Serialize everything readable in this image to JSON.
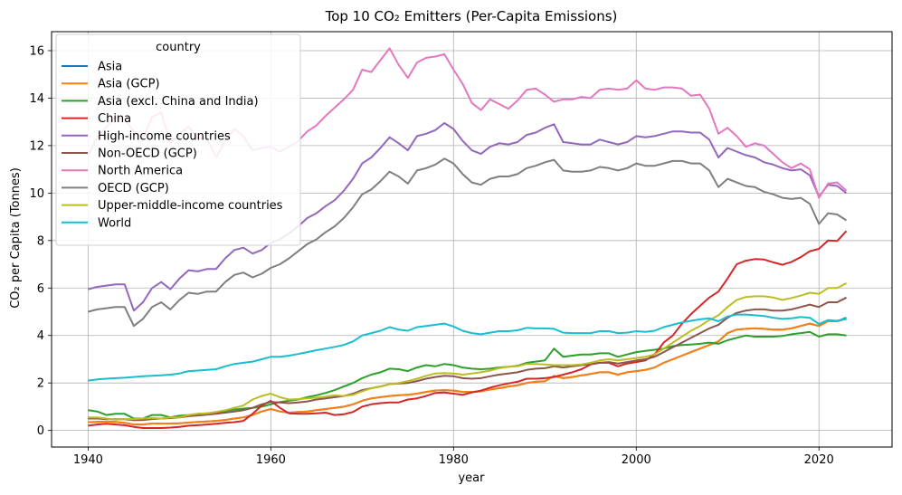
{
  "chart_data": {
    "type": "line",
    "title": "Top 10 CO₂ Emitters (Per-Capita Emissions)",
    "xlabel": "year",
    "ylabel": "CO₂ per Capita (Tonnes)",
    "xlim": [
      1936,
      2028
    ],
    "ylim": [
      -0.7,
      16.8
    ],
    "xticks": [
      1940,
      1960,
      1980,
      2000,
      2020
    ],
    "yticks": [
      0,
      2,
      4,
      6,
      8,
      10,
      12,
      14,
      16
    ],
    "grid": true,
    "legend": {
      "title": "country",
      "placement": "upper-left"
    },
    "x": [
      1940,
      1941,
      1942,
      1943,
      1944,
      1945,
      1946,
      1947,
      1948,
      1949,
      1950,
      1951,
      1952,
      1953,
      1954,
      1955,
      1956,
      1957,
      1958,
      1959,
      1960,
      1961,
      1962,
      1963,
      1964,
      1965,
      1966,
      1967,
      1968,
      1969,
      1970,
      1971,
      1972,
      1973,
      1974,
      1975,
      1976,
      1977,
      1978,
      1979,
      1980,
      1981,
      1982,
      1983,
      1984,
      1985,
      1986,
      1987,
      1988,
      1989,
      1990,
      1991,
      1992,
      1993,
      1994,
      1995,
      1996,
      1997,
      1998,
      1999,
      2000,
      2001,
      2002,
      2003,
      2004,
      2005,
      2006,
      2007,
      2008,
      2009,
      2010,
      2011,
      2012,
      2013,
      2014,
      2015,
      2016,
      2017,
      2018,
      2019,
      2020,
      2021,
      2022,
      2023
    ],
    "series": [
      {
        "name": "Asia",
        "color": "#1f77b4",
        "values": [
          0.35,
          0.36,
          0.37,
          0.36,
          0.32,
          0.25,
          0.25,
          0.29,
          0.29,
          0.29,
          0.3,
          0.33,
          0.36,
          0.38,
          0.4,
          0.44,
          0.5,
          0.55,
          0.65,
          0.8,
          0.9,
          0.8,
          0.75,
          0.78,
          0.8,
          0.85,
          0.9,
          0.95,
          1.0,
          1.1,
          1.25,
          1.35,
          1.4,
          1.45,
          1.48,
          1.5,
          1.55,
          1.62,
          1.68,
          1.7,
          1.68,
          1.62,
          1.62,
          1.65,
          1.72,
          1.78,
          1.85,
          1.9,
          2.0,
          2.05,
          2.07,
          2.3,
          2.2,
          2.25,
          2.32,
          2.38,
          2.45,
          2.45,
          2.35,
          2.45,
          2.5,
          2.55,
          2.65,
          2.85,
          3.0,
          3.15,
          3.3,
          3.45,
          3.6,
          3.75,
          4.1,
          4.25,
          4.28,
          4.3,
          4.28,
          4.25,
          4.25,
          4.3,
          4.4,
          4.5,
          4.4,
          4.6,
          4.6,
          4.75
        ]
      },
      {
        "name": "Asia (GCP)",
        "color": "#ff7f0e",
        "values": [
          0.35,
          0.36,
          0.37,
          0.36,
          0.32,
          0.25,
          0.25,
          0.29,
          0.29,
          0.29,
          0.3,
          0.33,
          0.36,
          0.38,
          0.4,
          0.44,
          0.5,
          0.55,
          0.65,
          0.8,
          0.9,
          0.8,
          0.75,
          0.78,
          0.8,
          0.85,
          0.9,
          0.95,
          1.0,
          1.1,
          1.25,
          1.35,
          1.4,
          1.45,
          1.48,
          1.5,
          1.55,
          1.62,
          1.68,
          1.7,
          1.68,
          1.62,
          1.62,
          1.65,
          1.72,
          1.78,
          1.85,
          1.9,
          2.0,
          2.05,
          2.07,
          2.3,
          2.2,
          2.25,
          2.32,
          2.38,
          2.45,
          2.45,
          2.35,
          2.45,
          2.5,
          2.55,
          2.65,
          2.85,
          3.0,
          3.15,
          3.3,
          3.45,
          3.6,
          3.75,
          4.1,
          4.25,
          4.28,
          4.3,
          4.28,
          4.25,
          4.25,
          4.3,
          4.4,
          4.5,
          4.4,
          4.6,
          4.6,
          4.7
        ]
      },
      {
        "name": "Asia (excl. China and India)",
        "color": "#2ca02c",
        "values": [
          0.85,
          0.8,
          0.65,
          0.7,
          0.7,
          0.5,
          0.5,
          0.65,
          0.65,
          0.55,
          0.62,
          0.65,
          0.7,
          0.72,
          0.75,
          0.82,
          0.88,
          0.92,
          0.95,
          1.0,
          1.1,
          1.2,
          1.25,
          1.3,
          1.4,
          1.48,
          1.58,
          1.7,
          1.85,
          2.0,
          2.2,
          2.35,
          2.45,
          2.6,
          2.58,
          2.5,
          2.65,
          2.75,
          2.7,
          2.8,
          2.75,
          2.65,
          2.6,
          2.58,
          2.6,
          2.65,
          2.68,
          2.72,
          2.85,
          2.9,
          2.95,
          3.45,
          3.1,
          3.15,
          3.2,
          3.2,
          3.25,
          3.25,
          3.1,
          3.2,
          3.3,
          3.35,
          3.4,
          3.45,
          3.55,
          3.6,
          3.62,
          3.65,
          3.7,
          3.65,
          3.8,
          3.9,
          4.0,
          3.95,
          3.95,
          3.95,
          3.98,
          4.05,
          4.1,
          4.15,
          3.95,
          4.05,
          4.05,
          4.0
        ]
      },
      {
        "name": "China",
        "color": "#d62728",
        "values": [
          0.2,
          0.25,
          0.28,
          0.25,
          0.22,
          0.15,
          0.1,
          0.1,
          0.1,
          0.12,
          0.15,
          0.2,
          0.22,
          0.25,
          0.28,
          0.32,
          0.35,
          0.4,
          0.7,
          1.05,
          1.25,
          0.95,
          0.72,
          0.7,
          0.7,
          0.72,
          0.75,
          0.65,
          0.68,
          0.78,
          1.0,
          1.1,
          1.15,
          1.18,
          1.18,
          1.3,
          1.35,
          1.45,
          1.58,
          1.6,
          1.55,
          1.5,
          1.6,
          1.68,
          1.8,
          1.9,
          1.98,
          2.05,
          2.18,
          2.18,
          2.2,
          2.25,
          2.35,
          2.45,
          2.58,
          2.78,
          2.85,
          2.85,
          2.7,
          2.82,
          2.88,
          2.95,
          3.2,
          3.7,
          4.0,
          4.5,
          4.9,
          5.25,
          5.6,
          5.85,
          6.4,
          7.0,
          7.15,
          7.22,
          7.2,
          7.08,
          6.98,
          7.1,
          7.3,
          7.55,
          7.65,
          8.0,
          7.98,
          8.4
        ]
      },
      {
        "name": "High-income countries",
        "color": "#9467bd",
        "values": [
          5.95,
          6.05,
          6.1,
          6.15,
          6.15,
          5.05,
          5.4,
          6.0,
          6.25,
          5.95,
          6.4,
          6.75,
          6.7,
          6.8,
          6.8,
          7.25,
          7.6,
          7.7,
          7.45,
          7.6,
          7.9,
          8.05,
          8.3,
          8.6,
          8.95,
          9.15,
          9.45,
          9.7,
          10.1,
          10.6,
          11.25,
          11.5,
          11.9,
          12.35,
          12.1,
          11.8,
          12.4,
          12.5,
          12.65,
          12.95,
          12.7,
          12.2,
          11.8,
          11.65,
          11.95,
          12.1,
          12.05,
          12.15,
          12.45,
          12.55,
          12.75,
          12.9,
          12.15,
          12.1,
          12.05,
          12.05,
          12.25,
          12.15,
          12.05,
          12.15,
          12.4,
          12.35,
          12.4,
          12.5,
          12.6,
          12.6,
          12.55,
          12.55,
          12.25,
          11.5,
          11.9,
          11.75,
          11.6,
          11.5,
          11.3,
          11.2,
          11.05,
          10.95,
          11.0,
          10.75,
          9.85,
          10.35,
          10.3,
          10.0
        ]
      },
      {
        "name": "Non-OECD (GCP)",
        "color": "#8c564b",
        "values": [
          0.5,
          0.5,
          0.48,
          0.47,
          0.47,
          0.43,
          0.44,
          0.48,
          0.5,
          0.52,
          0.55,
          0.6,
          0.63,
          0.66,
          0.7,
          0.75,
          0.8,
          0.85,
          0.95,
          1.1,
          1.2,
          1.18,
          1.15,
          1.18,
          1.22,
          1.3,
          1.35,
          1.4,
          1.45,
          1.55,
          1.7,
          1.78,
          1.85,
          1.95,
          1.98,
          2.0,
          2.08,
          2.18,
          2.25,
          2.3,
          2.28,
          2.2,
          2.18,
          2.2,
          2.28,
          2.35,
          2.4,
          2.45,
          2.55,
          2.6,
          2.62,
          2.7,
          2.65,
          2.7,
          2.75,
          2.8,
          2.85,
          2.88,
          2.82,
          2.88,
          2.95,
          3.0,
          3.1,
          3.3,
          3.5,
          3.7,
          3.9,
          4.1,
          4.3,
          4.45,
          4.75,
          4.95,
          5.05,
          5.1,
          5.1,
          5.05,
          5.05,
          5.1,
          5.2,
          5.3,
          5.2,
          5.4,
          5.4,
          5.6
        ]
      },
      {
        "name": "North America",
        "color": "#e377c2",
        "values": [
          11.6,
          12.35,
          12.8,
          13.2,
          13.1,
          12.6,
          12.3,
          13.2,
          13.4,
          12.1,
          12.5,
          12.8,
          12.3,
          12.3,
          11.5,
          12.2,
          12.7,
          12.4,
          11.8,
          11.9,
          11.95,
          11.75,
          11.95,
          12.2,
          12.6,
          12.85,
          13.25,
          13.6,
          13.95,
          14.35,
          15.2,
          15.1,
          15.6,
          16.1,
          15.4,
          14.85,
          15.5,
          15.7,
          15.75,
          15.85,
          15.2,
          14.6,
          13.8,
          13.5,
          13.95,
          13.75,
          13.55,
          13.9,
          14.35,
          14.4,
          14.15,
          13.85,
          13.95,
          13.95,
          14.05,
          14.0,
          14.35,
          14.4,
          14.35,
          14.4,
          14.75,
          14.4,
          14.35,
          14.45,
          14.45,
          14.4,
          14.1,
          14.15,
          13.55,
          12.5,
          12.75,
          12.4,
          11.95,
          12.1,
          12.0,
          11.65,
          11.3,
          11.05,
          11.25,
          11.0,
          9.8,
          10.4,
          10.45,
          10.1
        ]
      },
      {
        "name": "OECD (GCP)",
        "color": "#7f7f7f",
        "values": [
          5.0,
          5.1,
          5.15,
          5.2,
          5.2,
          4.4,
          4.7,
          5.2,
          5.4,
          5.1,
          5.5,
          5.8,
          5.75,
          5.85,
          5.85,
          6.25,
          6.55,
          6.65,
          6.45,
          6.6,
          6.85,
          7.0,
          7.25,
          7.55,
          7.85,
          8.05,
          8.35,
          8.6,
          8.95,
          9.4,
          9.95,
          10.15,
          10.5,
          10.9,
          10.7,
          10.4,
          10.95,
          11.05,
          11.2,
          11.45,
          11.25,
          10.8,
          10.45,
          10.35,
          10.6,
          10.7,
          10.7,
          10.8,
          11.05,
          11.15,
          11.3,
          11.4,
          10.95,
          10.9,
          10.9,
          10.95,
          11.1,
          11.05,
          10.95,
          11.05,
          11.25,
          11.15,
          11.15,
          11.25,
          11.35,
          11.35,
          11.25,
          11.25,
          10.95,
          10.25,
          10.6,
          10.45,
          10.3,
          10.25,
          10.05,
          9.95,
          9.8,
          9.75,
          9.8,
          9.55,
          8.7,
          9.15,
          9.1,
          8.85
        ]
      },
      {
        "name": "Upper-middle-income countries",
        "color": "#bcbd22",
        "values": [
          0.55,
          0.55,
          0.5,
          0.45,
          0.48,
          0.48,
          0.5,
          0.52,
          0.5,
          0.55,
          0.55,
          0.65,
          0.7,
          0.72,
          0.78,
          0.85,
          0.95,
          1.05,
          1.3,
          1.45,
          1.55,
          1.4,
          1.3,
          1.32,
          1.35,
          1.38,
          1.42,
          1.48,
          1.45,
          1.5,
          1.65,
          1.78,
          1.85,
          1.95,
          2.0,
          2.08,
          2.18,
          2.3,
          2.4,
          2.42,
          2.4,
          2.35,
          2.4,
          2.45,
          2.52,
          2.62,
          2.68,
          2.7,
          2.8,
          2.8,
          2.78,
          2.75,
          2.75,
          2.75,
          2.78,
          2.85,
          2.95,
          3.0,
          2.95,
          3.0,
          3.05,
          3.1,
          3.2,
          3.45,
          3.7,
          3.95,
          4.2,
          4.4,
          4.65,
          4.85,
          5.2,
          5.5,
          5.62,
          5.65,
          5.65,
          5.6,
          5.5,
          5.58,
          5.68,
          5.8,
          5.75,
          6.0,
          6.0,
          6.2
        ]
      },
      {
        "name": "World",
        "color": "#17becf",
        "values": [
          2.1,
          2.15,
          2.18,
          2.2,
          2.22,
          2.25,
          2.28,
          2.3,
          2.32,
          2.35,
          2.4,
          2.5,
          2.52,
          2.55,
          2.58,
          2.7,
          2.8,
          2.85,
          2.9,
          3.0,
          3.1,
          3.1,
          3.15,
          3.22,
          3.3,
          3.38,
          3.45,
          3.52,
          3.6,
          3.75,
          4.0,
          4.1,
          4.2,
          4.35,
          4.25,
          4.2,
          4.35,
          4.4,
          4.45,
          4.5,
          4.38,
          4.2,
          4.1,
          4.05,
          4.12,
          4.18,
          4.18,
          4.22,
          4.32,
          4.3,
          4.3,
          4.28,
          4.12,
          4.1,
          4.1,
          4.1,
          4.18,
          4.18,
          4.1,
          4.12,
          4.18,
          4.15,
          4.2,
          4.35,
          4.45,
          4.55,
          4.62,
          4.68,
          4.72,
          4.6,
          4.8,
          4.88,
          4.88,
          4.85,
          4.82,
          4.75,
          4.7,
          4.72,
          4.78,
          4.75,
          4.48,
          4.65,
          4.62,
          4.7
        ]
      }
    ]
  }
}
